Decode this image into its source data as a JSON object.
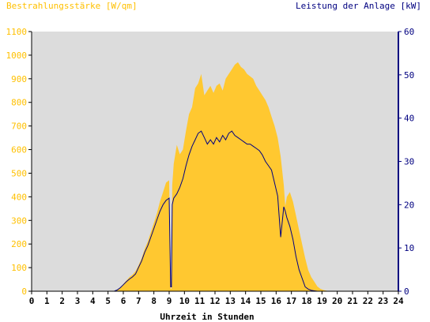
{
  "chart_data": {
    "type": "area",
    "title_left": "Bestrahlungsstärke [W/qm]",
    "title_right": "Leistung der Anlage [kW]",
    "xlabel": "Uhrzeit in Stunden",
    "xlim": [
      0,
      24
    ],
    "ylim_left": [
      0,
      1100
    ],
    "ylim_right": [
      0,
      60
    ],
    "x_ticks": [
      "0",
      "1",
      "2",
      "3",
      "4",
      "5",
      "6",
      "7",
      "8",
      "9",
      "10",
      "11",
      "12",
      "13",
      "14",
      "15",
      "16",
      "17",
      "18",
      "19",
      "20",
      "21",
      "22",
      "23",
      "24"
    ],
    "y_ticks_left": [
      "0",
      "100",
      "200",
      "300",
      "400",
      "500",
      "600",
      "700",
      "800",
      "900",
      "1000",
      "1100"
    ],
    "y_ticks_right": [
      "0",
      "10",
      "20",
      "30",
      "40",
      "50",
      "60"
    ],
    "grid": false,
    "background_color": "#dcdcdc",
    "series": [
      {
        "name": "Bestrahlungsstärke [W/qm]",
        "axis": "left",
        "style": "area",
        "color": "#ffc830",
        "x": [
          0,
          5.4,
          5.6,
          5.8,
          6.0,
          6.2,
          6.4,
          6.6,
          6.8,
          7.0,
          7.2,
          7.4,
          7.6,
          7.8,
          8.0,
          8.2,
          8.4,
          8.6,
          8.8,
          9.0,
          9.1,
          9.15,
          9.2,
          9.3,
          9.5,
          9.7,
          9.9,
          10.1,
          10.3,
          10.5,
          10.7,
          10.9,
          11.1,
          11.3,
          11.5,
          11.7,
          11.9,
          12.1,
          12.3,
          12.5,
          12.7,
          12.9,
          13.1,
          13.3,
          13.5,
          13.7,
          13.9,
          14.1,
          14.3,
          14.5,
          14.7,
          14.9,
          15.1,
          15.3,
          15.5,
          15.7,
          15.9,
          16.1,
          16.3,
          16.5,
          16.6,
          16.7,
          16.9,
          17.1,
          17.3,
          17.5,
          17.7,
          17.9,
          18.1,
          18.3,
          18.5,
          18.7,
          18.9,
          19.1,
          19.3,
          19.5,
          24
        ],
        "values": [
          0,
          0,
          5,
          15,
          30,
          45,
          60,
          70,
          85,
          110,
          140,
          180,
          210,
          250,
          290,
          330,
          380,
          420,
          460,
          470,
          10,
          10,
          450,
          540,
          620,
          580,
          600,
          680,
          750,
          780,
          860,
          880,
          920,
          830,
          850,
          870,
          840,
          870,
          880,
          850,
          900,
          920,
          940,
          960,
          970,
          950,
          940,
          920,
          910,
          900,
          870,
          850,
          830,
          810,
          780,
          740,
          700,
          650,
          570,
          450,
          360,
          400,
          420,
          380,
          320,
          260,
          200,
          140,
          90,
          60,
          40,
          20,
          10,
          5,
          2,
          0,
          0
        ]
      },
      {
        "name": "Leistung der Anlage [kW]",
        "axis": "right",
        "style": "line",
        "color": "#000080",
        "x": [
          0,
          5.4,
          5.6,
          5.8,
          6.0,
          6.2,
          6.4,
          6.6,
          6.8,
          7.0,
          7.2,
          7.4,
          7.6,
          7.8,
          8.0,
          8.2,
          8.4,
          8.6,
          8.8,
          9.0,
          9.1,
          9.15,
          9.2,
          9.3,
          9.5,
          9.7,
          9.9,
          10.1,
          10.3,
          10.5,
          10.7,
          10.9,
          11.1,
          11.3,
          11.5,
          11.7,
          11.9,
          12.1,
          12.3,
          12.5,
          12.7,
          12.9,
          13.1,
          13.3,
          13.5,
          13.7,
          13.9,
          14.1,
          14.3,
          14.5,
          14.7,
          14.9,
          15.1,
          15.3,
          15.5,
          15.7,
          15.9,
          16.1,
          16.3,
          16.5,
          16.6,
          16.7,
          16.9,
          17.1,
          17.3,
          17.5,
          17.7,
          17.9,
          18.1,
          18.3,
          18.5,
          18.7,
          18.9,
          19.1,
          19.3,
          19.5,
          24
        ],
        "values": [
          0,
          0,
          0.3,
          0.8,
          1.5,
          2.2,
          2.8,
          3.3,
          4.0,
          5.5,
          7.0,
          9.0,
          10.5,
          12.5,
          14.5,
          16.5,
          18.5,
          20.0,
          21.0,
          21.5,
          1.0,
          1.0,
          20.0,
          21.5,
          22.5,
          24.0,
          26.0,
          29.0,
          31.5,
          33.5,
          35.0,
          36.5,
          37.0,
          35.5,
          34.0,
          35.0,
          34.0,
          35.5,
          34.5,
          36.0,
          35.0,
          36.5,
          37.0,
          36.0,
          35.5,
          35.0,
          34.5,
          34.0,
          34.0,
          33.5,
          33.0,
          32.5,
          31.5,
          30.0,
          29.0,
          28.0,
          25.0,
          22.0,
          12.5,
          19.5,
          18.5,
          17.0,
          15.0,
          12.0,
          8.0,
          5.0,
          3.0,
          1.0,
          0.5,
          0.2,
          0.1,
          0,
          0,
          0,
          0,
          0,
          0
        ]
      }
    ]
  }
}
